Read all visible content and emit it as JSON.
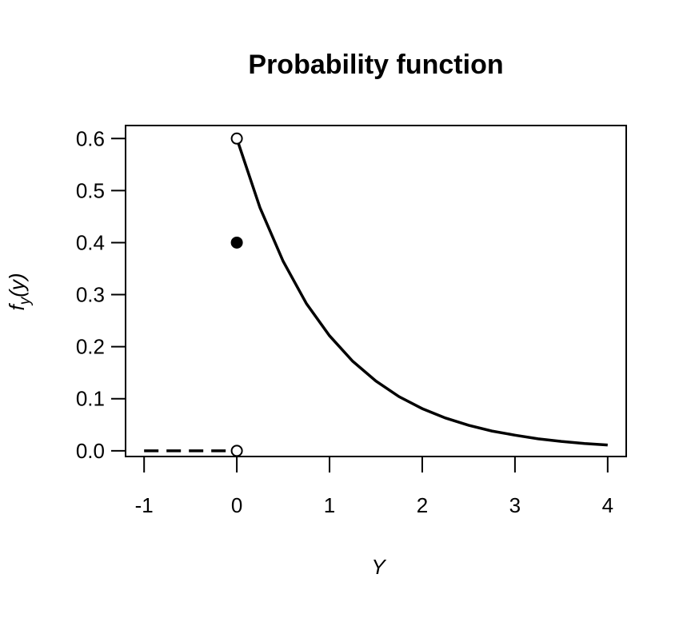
{
  "chart_data": {
    "type": "line",
    "title": "Probability function",
    "xlabel": "Y",
    "ylabel": {
      "base": "f",
      "subscript": "y",
      "rest": "(y)"
    },
    "xlim": [
      -1.2,
      4.2
    ],
    "ylim": [
      -0.011,
      0.625
    ],
    "xticks": [
      -1,
      0,
      1,
      2,
      3,
      4
    ],
    "yticks": [
      {
        "value": 0,
        "label": "0.0"
      },
      0.1,
      0.2,
      0.3,
      0.4,
      0.5,
      0.6
    ],
    "series": [
      {
        "style": "solid",
        "color": "#000000",
        "x": [
          0,
          0.25,
          0.5,
          0.75,
          1,
          1.25,
          1.5,
          1.75,
          2,
          2.25,
          2.5,
          2.75,
          3,
          3.25,
          3.5,
          3.75,
          4
        ],
        "values": [
          0.6,
          0.467,
          0.364,
          0.283,
          0.221,
          0.172,
          0.134,
          0.104,
          0.081,
          0.063,
          0.049,
          0.038,
          0.03,
          0.023,
          0.018,
          0.014,
          0.011
        ]
      },
      {
        "style": "dashed",
        "color": "#000000",
        "x": [
          -1,
          0
        ],
        "values": [
          0,
          0
        ]
      },
      {
        "style": "open-point",
        "color": "#000000",
        "x": [
          0,
          0
        ],
        "values": [
          0.6,
          0
        ]
      },
      {
        "style": "filled-point",
        "color": "#000000",
        "x": [
          0
        ],
        "values": [
          0.4
        ]
      }
    ]
  }
}
